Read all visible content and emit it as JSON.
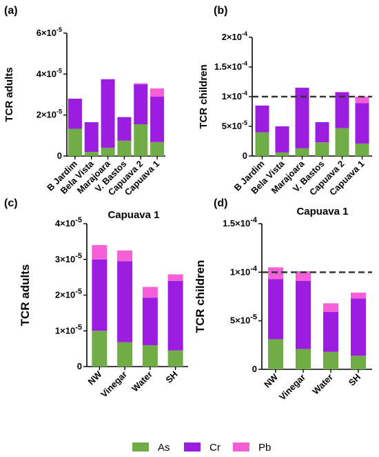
{
  "colors": {
    "As": "#70ad47",
    "Cr": "#9b1ee0",
    "Pb": "#f560d6",
    "threshold_line": "#333333"
  },
  "legend": [
    "As",
    "Cr",
    "Pb"
  ],
  "chart_data": [
    {
      "panel": "(a)",
      "type": "bar",
      "stacked": true,
      "title": "",
      "xlabel": "",
      "ylabel": "TCR adults",
      "ylim": [
        0,
        6e-05
      ],
      "yticks": [
        {
          "value": 0,
          "label": "0",
          "base": "",
          "exp": ""
        },
        {
          "value": 2e-05,
          "label": "",
          "base": "2×10",
          "exp": "-5"
        },
        {
          "value": 4e-05,
          "label": "",
          "base": "4×10",
          "exp": "-5"
        },
        {
          "value": 6e-05,
          "label": "",
          "base": "6×10",
          "exp": "-5"
        }
      ],
      "categories": [
        "B Jardim",
        "Bela Vista",
        "Marajoara",
        "V. Bastos",
        "Capuava 2",
        "Capuava 1"
      ],
      "series": [
        {
          "name": "As",
          "values": [
            1.33e-05,
            2e-06,
            4e-06,
            7.5e-06,
            1.55e-05,
            6.8e-06
          ]
        },
        {
          "name": "Cr",
          "values": [
            1.47e-05,
            1.45e-05,
            3.35e-05,
            1.15e-05,
            1.95e-05,
            2.22e-05
          ]
        },
        {
          "name": "Pb",
          "values": [
            0,
            0,
            0,
            0,
            5e-07,
            4e-06
          ]
        }
      ],
      "threshold": null,
      "x_rotated": true
    },
    {
      "panel": "(b)",
      "type": "bar",
      "stacked": true,
      "title": "",
      "xlabel": "",
      "ylabel": "TCR children",
      "ylim": [
        0,
        0.0002
      ],
      "yticks": [
        {
          "value": 0,
          "label": "0",
          "base": "",
          "exp": ""
        },
        {
          "value": 5e-05,
          "label": "",
          "base": "5×10",
          "exp": "-5"
        },
        {
          "value": 0.0001,
          "label": "",
          "base": "1×10",
          "exp": "-4"
        },
        {
          "value": 0.00015,
          "label": "",
          "base": "1.5×10",
          "exp": "-4"
        },
        {
          "value": 0.0002,
          "label": "",
          "base": "2×10",
          "exp": "-4"
        }
      ],
      "categories": [
        "B Jardim",
        "Bela Vista",
        "Marajoara",
        "V. Bastos",
        "Capuava 2",
        "Capuava 1"
      ],
      "series": [
        {
          "name": "As",
          "values": [
            4e-05,
            6e-06,
            1.3e-05,
            2.3e-05,
            4.7e-05,
            2.1e-05
          ]
        },
        {
          "name": "Cr",
          "values": [
            4.5e-05,
            4.4e-05,
            0.000102,
            3.4e-05,
            6e-05,
            6.8e-05
          ]
        },
        {
          "name": "Pb",
          "values": [
            0,
            0,
            0,
            0,
            1e-06,
            1.1e-05
          ]
        }
      ],
      "threshold": 0.0001,
      "x_rotated": true
    },
    {
      "panel": "(c)",
      "type": "bar",
      "stacked": true,
      "title": "Capuava 1",
      "xlabel": "",
      "ylabel": "TCR adults",
      "ylim": [
        0,
        4e-05
      ],
      "yticks": [
        {
          "value": 0,
          "label": "0",
          "base": "",
          "exp": ""
        },
        {
          "value": 1e-05,
          "label": "",
          "base": "1×10",
          "exp": "-5"
        },
        {
          "value": 2e-05,
          "label": "",
          "base": "2×10",
          "exp": "-5"
        },
        {
          "value": 3e-05,
          "label": "",
          "base": "3×10",
          "exp": "-5"
        },
        {
          "value": 4e-05,
          "label": "",
          "base": "4×10",
          "exp": "-5"
        }
      ],
      "categories": [
        "NW",
        "Vinegar",
        "Water",
        "SH"
      ],
      "series": [
        {
          "name": "As",
          "values": [
            1e-05,
            6.8e-06,
            6e-06,
            4.5e-06
          ]
        },
        {
          "name": "Cr",
          "values": [
            2e-05,
            2.27e-05,
            1.33e-05,
            1.95e-05
          ]
        },
        {
          "name": "Pb",
          "values": [
            4e-06,
            3e-06,
            3e-06,
            1.8e-06
          ]
        }
      ],
      "threshold": null,
      "x_rotated": true
    },
    {
      "panel": "(d)",
      "type": "bar",
      "stacked": true,
      "title": "Capuava 1",
      "xlabel": "",
      "ylabel": "TCR children",
      "ylim": [
        0,
        0.00015
      ],
      "yticks": [
        {
          "value": 0,
          "label": "0",
          "base": "",
          "exp": ""
        },
        {
          "value": 5e-05,
          "label": "",
          "base": "5×10",
          "exp": "-5"
        },
        {
          "value": 0.0001,
          "label": "",
          "base": "1×10",
          "exp": "-4"
        },
        {
          "value": 0.00015,
          "label": "",
          "base": "1.5×10",
          "exp": "-4"
        }
      ],
      "categories": [
        "NW",
        "Vinegar",
        "Water",
        "SH"
      ],
      "series": [
        {
          "name": "As",
          "values": [
            3.1e-05,
            2.1e-05,
            1.8e-05,
            1.4e-05
          ]
        },
        {
          "name": "Cr",
          "values": [
            6.2e-05,
            7e-05,
            4.1e-05,
            5.9e-05
          ]
        },
        {
          "name": "Pb",
          "values": [
            1.2e-05,
            1e-05,
            9e-06,
            6e-06
          ]
        }
      ],
      "threshold": 0.0001,
      "x_rotated": true
    }
  ]
}
